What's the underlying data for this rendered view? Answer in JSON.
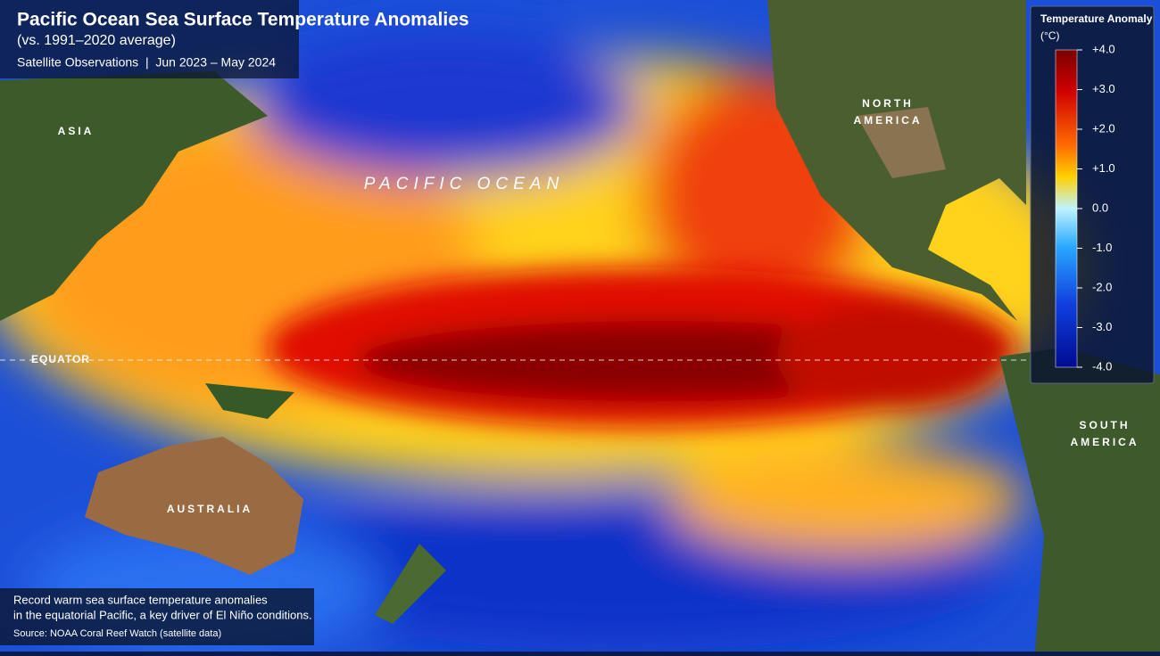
{
  "header": {
    "title": "Pacific Ocean Sea Surface Temperature Anomalies",
    "subtitle": "(vs. 1991–2020 average)",
    "meta": "Satellite Observations  |  Jun 2023 – May 2024"
  },
  "map_labels": {
    "asia": "ASIA",
    "north_america": [
      "NORTH",
      "AMERICA"
    ],
    "pacific_ocean": "PACIFIC OCEAN",
    "equator": "EQUATOR",
    "australia": "AUSTRALIA",
    "south_america": [
      "SOUTH",
      "AMERICA"
    ]
  },
  "legend": {
    "title": "Temperature Anomaly",
    "unit": "(°C)",
    "lim": [
      -4,
      4
    ],
    "ticks": [
      {
        "value": 4,
        "label": "+4.0"
      },
      {
        "value": 3,
        "label": "+3.0"
      },
      {
        "value": 2,
        "label": "+2.0"
      },
      {
        "value": 1,
        "label": "+1.0"
      },
      {
        "value": 0,
        "label": "0.0"
      },
      {
        "value": -1,
        "label": "-1.0"
      },
      {
        "value": -2,
        "label": "-2.0"
      },
      {
        "value": -3,
        "label": "-3.0"
      },
      {
        "value": -4,
        "label": "-4.0"
      }
    ]
  },
  "caption": {
    "lines": [
      "Record warm sea surface temperature anomalies",
      "in the equatorial Pacific, a key driver of El Niño conditions."
    ],
    "source": "Source: NOAA Coral Reef Watch (satellite data)"
  }
}
